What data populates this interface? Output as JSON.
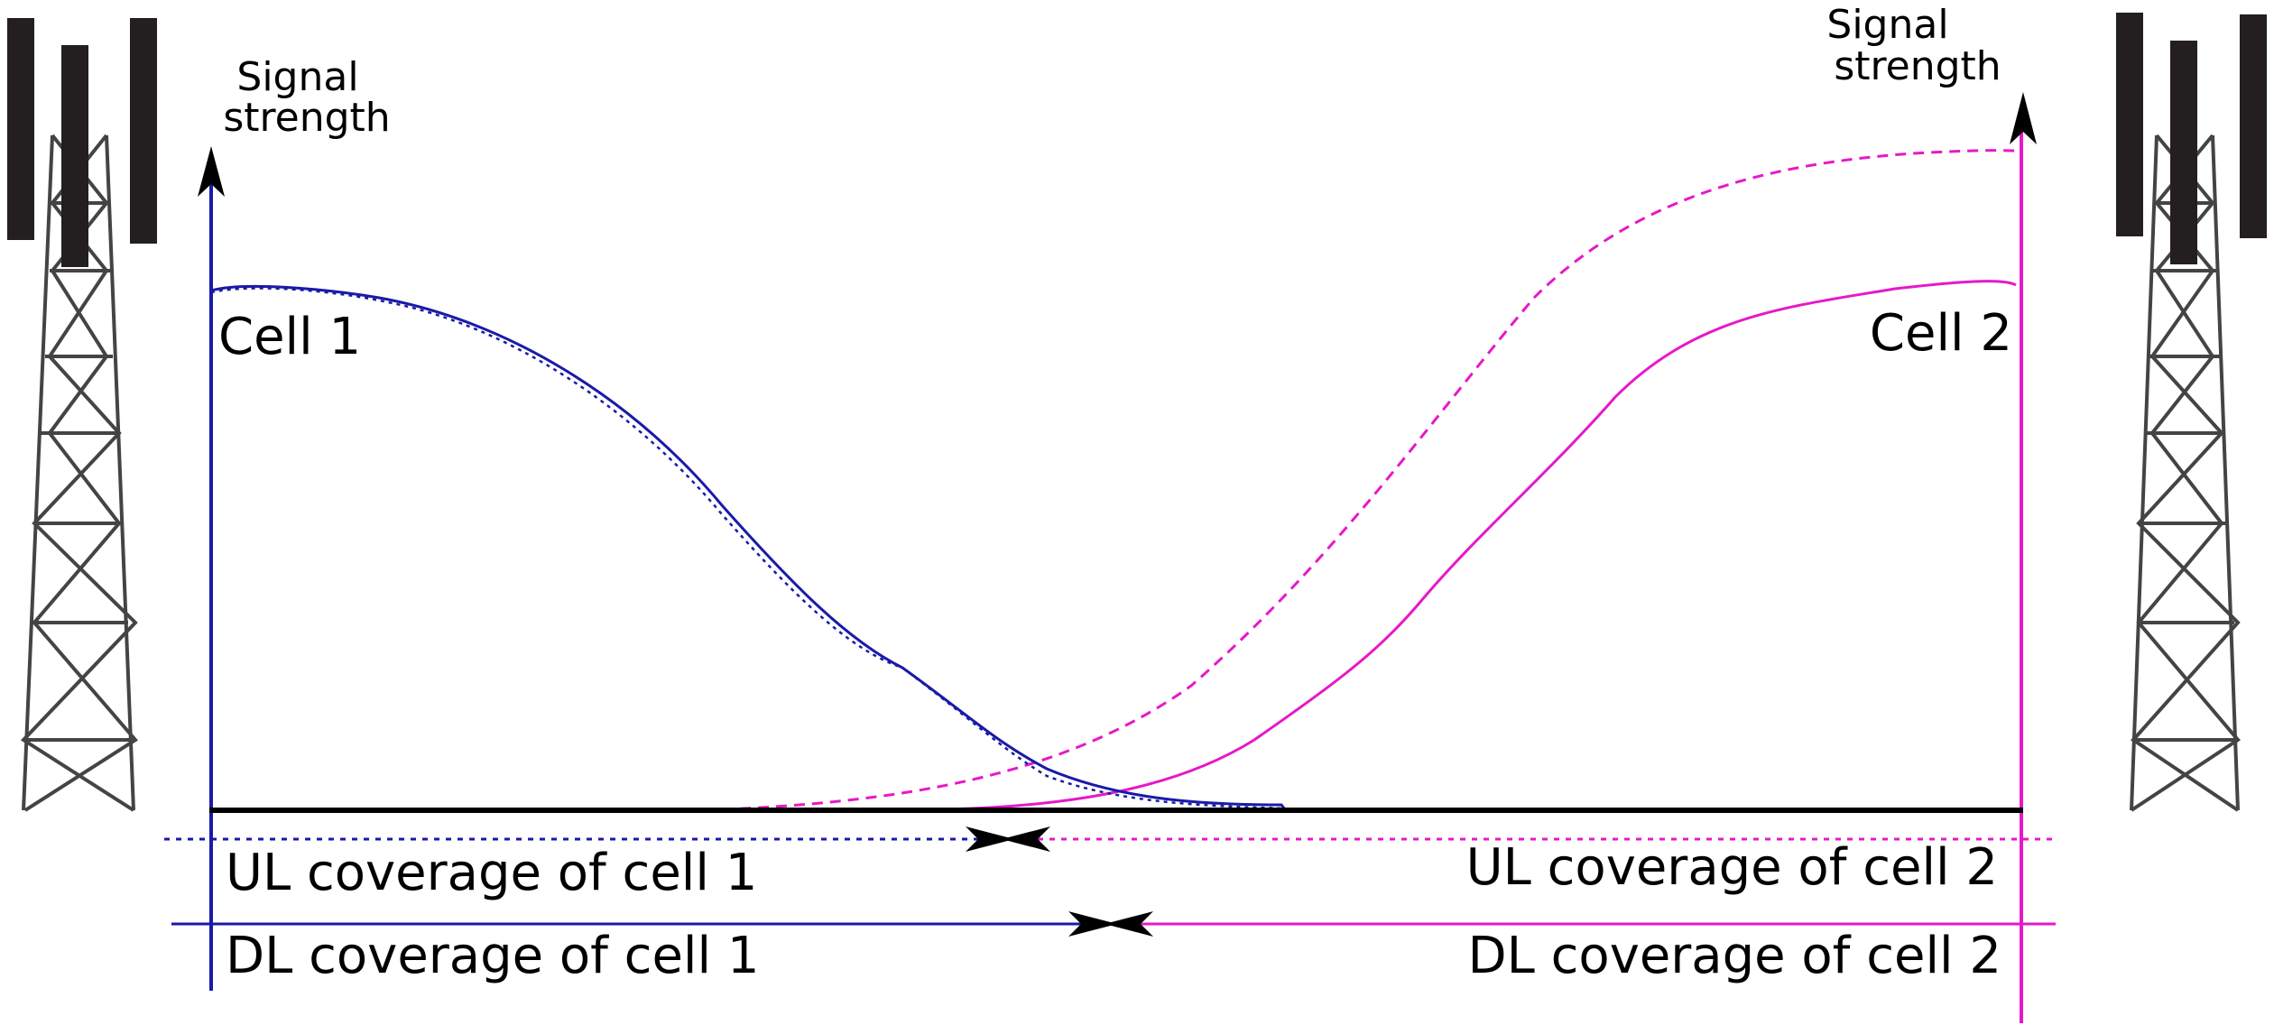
{
  "colors": {
    "cell1": "#1a1aa8",
    "cell2": "#e619c8",
    "axis": "#000000",
    "tower": "#231f20"
  },
  "left_axis": {
    "label_line1": "Signal",
    "label_line2": "strength"
  },
  "right_axis": {
    "label_line1": "Signal",
    "label_line2": "strength"
  },
  "cell1": {
    "label": "Cell 1"
  },
  "cell2": {
    "label": "Cell 2"
  },
  "coverage": {
    "ul_cell1": "UL coverage of cell 1",
    "ul_cell2": "UL coverage of cell 2",
    "dl_cell1": "DL coverage of cell 1",
    "dl_cell2": "DL coverage of cell 2"
  },
  "icons": {
    "left_tower": "cell-tower-icon",
    "right_tower": "cell-tower-icon"
  }
}
